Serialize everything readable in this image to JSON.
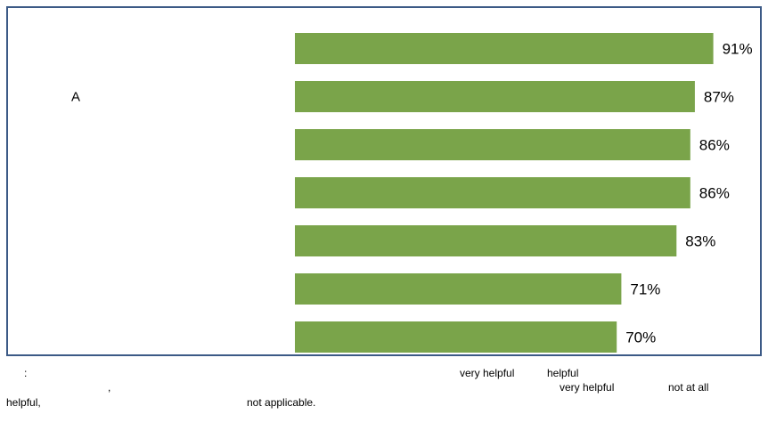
{
  "chart_data": {
    "type": "bar",
    "orientation": "horizontal",
    "categories": [
      "",
      "A",
      "",
      "",
      "",
      "",
      ""
    ],
    "values": [
      91,
      87,
      86,
      86,
      83,
      71,
      70
    ],
    "value_labels": [
      "91%",
      "87%",
      "86%",
      "86%",
      "83%",
      "71%",
      "70%"
    ],
    "xlim": [
      0,
      100
    ],
    "bar_color": "#7aa44a",
    "border_color": "#3c5a86",
    "grid": false,
    "legend": "none"
  },
  "footnote": {
    "phrase_very_helpful_1": "very helpful",
    "phrase_helpful": "helpful",
    "phrase_very_helpful_2": "very helpful",
    "phrase_not_at_all": "not at all",
    "phrase_helpful_2": "helpful,",
    "phrase_not_applicable": "not applicable."
  }
}
